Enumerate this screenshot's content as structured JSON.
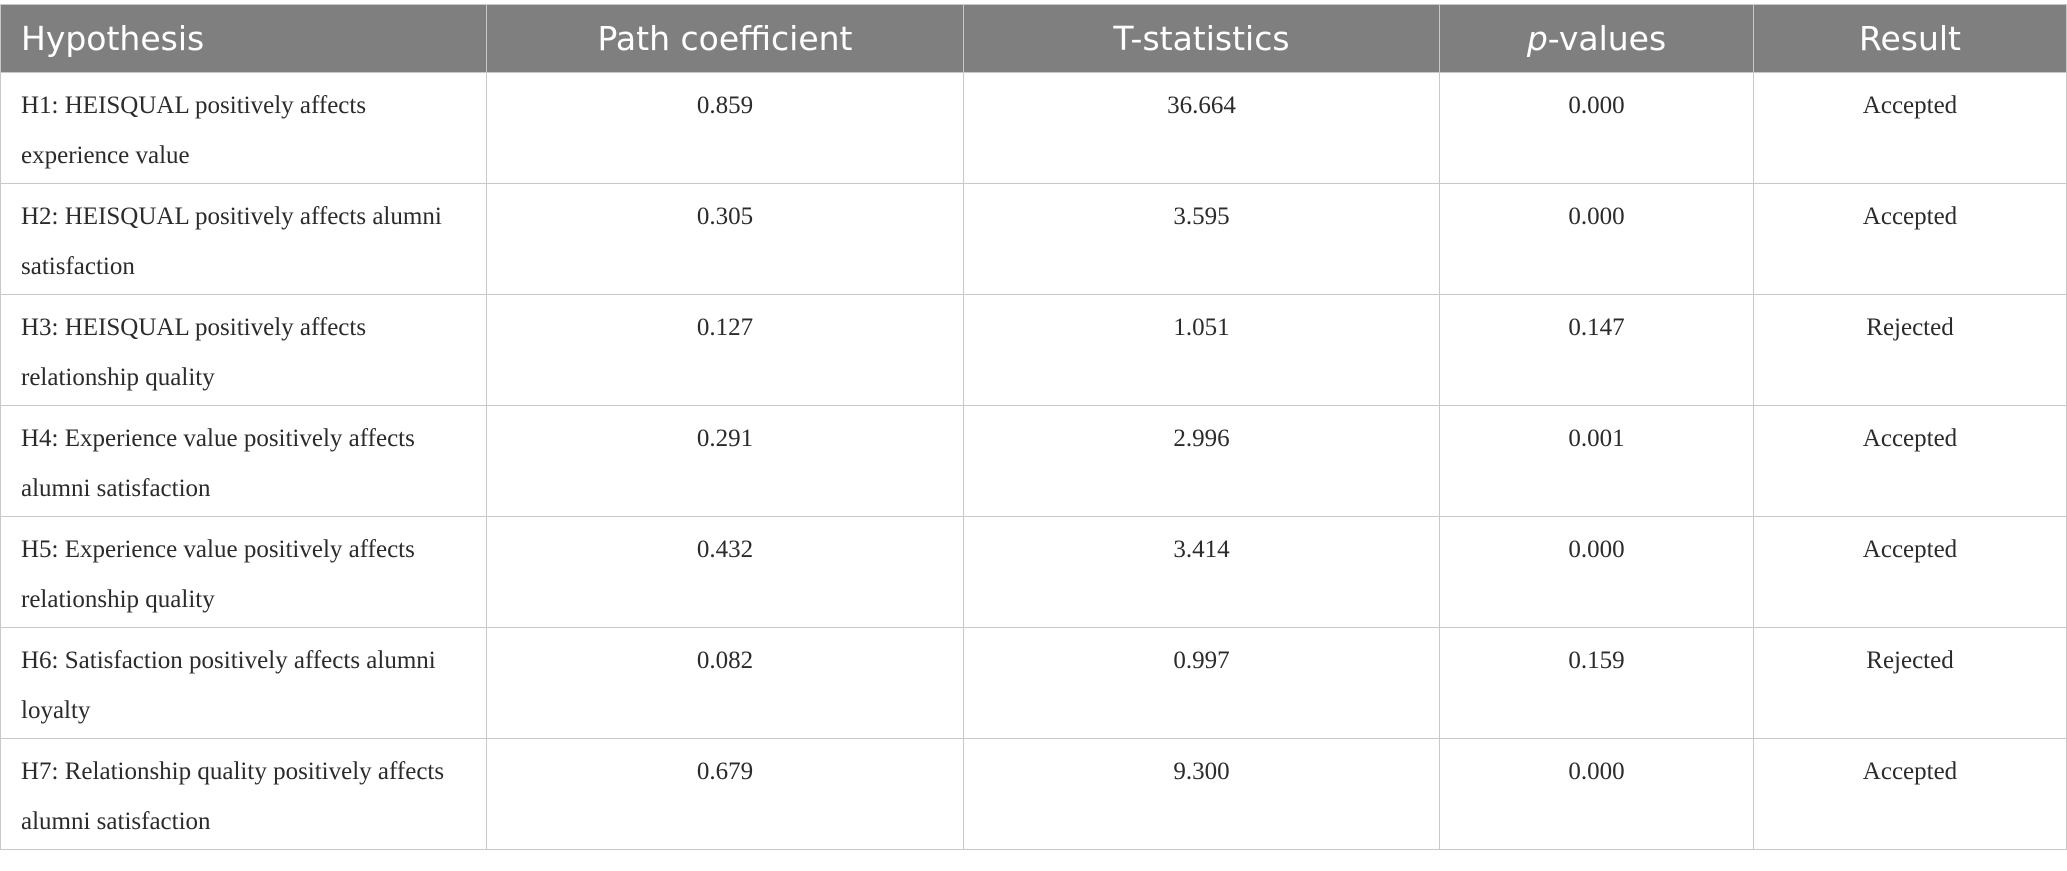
{
  "table": {
    "headers": {
      "hypothesis": "Hypothesis",
      "path_coefficient": "Path coefficient",
      "t_statistics": "T-statistics",
      "p_values_italic": "p",
      "p_values_rest": "-values",
      "result": "Result"
    },
    "rows": [
      {
        "hypothesis": "H1: HEISQUAL positively affects experience value",
        "path_coefficient": "0.859",
        "t_statistics": "36.664",
        "p_value": "0.000",
        "result": "Accepted"
      },
      {
        "hypothesis": "H2: HEISQUAL positively affects alumni satisfaction",
        "path_coefficient": "0.305",
        "t_statistics": "3.595",
        "p_value": "0.000",
        "result": "Accepted"
      },
      {
        "hypothesis": "H3: HEISQUAL positively affects relationship quality",
        "path_coefficient": "0.127",
        "t_statistics": "1.051",
        "p_value": "0.147",
        "result": "Rejected"
      },
      {
        "hypothesis": "H4: Experience value positively affects alumni satisfaction",
        "path_coefficient": "0.291",
        "t_statistics": "2.996",
        "p_value": "0.001",
        "result": "Accepted"
      },
      {
        "hypothesis": "H5: Experience value positively affects relationship quality",
        "path_coefficient": "0.432",
        "t_statistics": "3.414",
        "p_value": "0.000",
        "result": "Accepted"
      },
      {
        "hypothesis": "H6: Satisfaction positively affects alumni loyalty",
        "path_coefficient": "0.082",
        "t_statistics": "0.997",
        "p_value": "0.159",
        "result": "Rejected"
      },
      {
        "hypothesis": "H7: Relationship quality positively affects alumni satisfaction",
        "path_coefficient": "0.679",
        "t_statistics": "9.300",
        "p_value": "0.000",
        "result": "Accepted"
      }
    ]
  }
}
